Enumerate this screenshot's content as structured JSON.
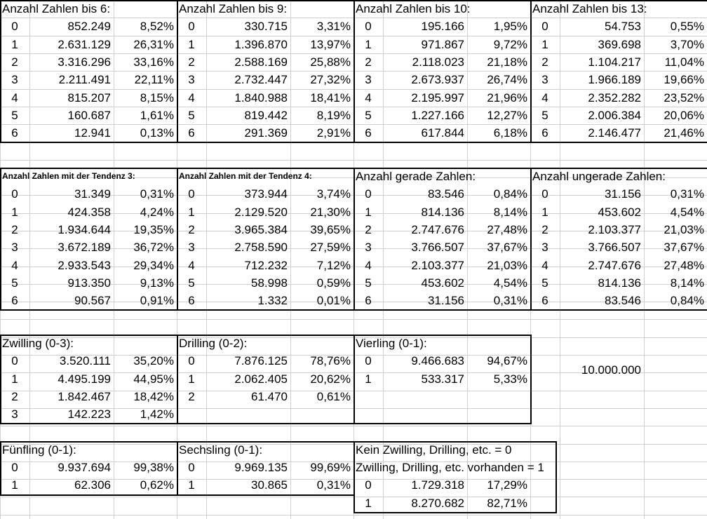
{
  "sections": [
    {
      "title": "Anzahl Zahlen bis 6:",
      "rows": [
        [
          "0",
          "852.249",
          "8,52%"
        ],
        [
          "1",
          "2.631.129",
          "26,31%"
        ],
        [
          "2",
          "3.316.296",
          "33,16%"
        ],
        [
          "3",
          "2.211.491",
          "22,11%"
        ],
        [
          "4",
          "815.207",
          "8,15%"
        ],
        [
          "5",
          "160.687",
          "1,61%"
        ],
        [
          "6",
          "12.941",
          "0,13%"
        ]
      ]
    },
    {
      "title": "Anzahl Zahlen bis 9:",
      "rows": [
        [
          "0",
          "330.715",
          "3,31%"
        ],
        [
          "1",
          "1.396.870",
          "13,97%"
        ],
        [
          "2",
          "2.588.169",
          "25,88%"
        ],
        [
          "3",
          "2.732.447",
          "27,32%"
        ],
        [
          "4",
          "1.840.988",
          "18,41%"
        ],
        [
          "5",
          "819.442",
          "8,19%"
        ],
        [
          "6",
          "291.369",
          "2,91%"
        ]
      ]
    },
    {
      "title": "Anzahl Zahlen bis 10:",
      "rows": [
        [
          "0",
          "195.166",
          "1,95%"
        ],
        [
          "1",
          "971.867",
          "9,72%"
        ],
        [
          "2",
          "2.118.023",
          "21,18%"
        ],
        [
          "3",
          "2.673.937",
          "26,74%"
        ],
        [
          "4",
          "2.195.997",
          "21,96%"
        ],
        [
          "5",
          "1.227.166",
          "12,27%"
        ],
        [
          "6",
          "617.844",
          "6,18%"
        ]
      ]
    },
    {
      "title": "Anzahl Zahlen bis 13:",
      "rows": [
        [
          "0",
          "54.753",
          "0,55%"
        ],
        [
          "1",
          "369.698",
          "3,70%"
        ],
        [
          "2",
          "1.104.217",
          "11,04%"
        ],
        [
          "3",
          "1.966.189",
          "19,66%"
        ],
        [
          "4",
          "2.352.282",
          "23,52%"
        ],
        [
          "5",
          "2.006.384",
          "20,06%"
        ],
        [
          "6",
          "2.146.477",
          "21,46%"
        ]
      ]
    },
    {
      "title": "Anzahl Zahlen mit der Tendenz 3:",
      "rows": [
        [
          "0",
          "31.349",
          "0,31%"
        ],
        [
          "1",
          "424.358",
          "4,24%"
        ],
        [
          "2",
          "1.934.644",
          "19,35%"
        ],
        [
          "3",
          "3.672.189",
          "36,72%"
        ],
        [
          "4",
          "2.933.543",
          "29,34%"
        ],
        [
          "5",
          "913.350",
          "9,13%"
        ],
        [
          "6",
          "90.567",
          "0,91%"
        ]
      ]
    },
    {
      "title": "Anzahl Zahlen mit der Tendenz 4:",
      "rows": [
        [
          "0",
          "373.944",
          "3,74%"
        ],
        [
          "1",
          "2.129.520",
          "21,30%"
        ],
        [
          "2",
          "3.965.384",
          "39,65%"
        ],
        [
          "3",
          "2.758.590",
          "27,59%"
        ],
        [
          "4",
          "712.232",
          "7,12%"
        ],
        [
          "5",
          "58.998",
          "0,59%"
        ],
        [
          "6",
          "1.332",
          "0,01%"
        ]
      ]
    },
    {
      "title": "Anzahl gerade Zahlen:",
      "rows": [
        [
          "0",
          "83.546",
          "0,84%"
        ],
        [
          "1",
          "814.136",
          "8,14%"
        ],
        [
          "2",
          "2.747.676",
          "27,48%"
        ],
        [
          "3",
          "3.766.507",
          "37,67%"
        ],
        [
          "4",
          "2.103.377",
          "21,03%"
        ],
        [
          "5",
          "453.602",
          "4,54%"
        ],
        [
          "6",
          "31.156",
          "0,31%"
        ]
      ]
    },
    {
      "title": "Anzahl ungerade Zahlen:",
      "rows": [
        [
          "0",
          "31.156",
          "0,31%"
        ],
        [
          "1",
          "453.602",
          "4,54%"
        ],
        [
          "2",
          "2.103.377",
          "21,03%"
        ],
        [
          "3",
          "3.766.507",
          "37,67%"
        ],
        [
          "4",
          "2.747.676",
          "27,48%"
        ],
        [
          "5",
          "814.136",
          "8,14%"
        ],
        [
          "6",
          "83.546",
          "0,84%"
        ]
      ]
    },
    {
      "title": "Zwilling (0-3):",
      "rows": [
        [
          "0",
          "3.520.111",
          "35,20%"
        ],
        [
          "1",
          "4.495.199",
          "44,95%"
        ],
        [
          "2",
          "1.842.467",
          "18,42%"
        ],
        [
          "3",
          "142.223",
          "1,42%"
        ]
      ]
    },
    {
      "title": "Drilling (0-2):",
      "rows": [
        [
          "0",
          "7.876.125",
          "78,76%"
        ],
        [
          "1",
          "2.062.405",
          "20,62%"
        ],
        [
          "2",
          "61.470",
          "0,61%"
        ]
      ]
    },
    {
      "title": "Vierling (0-1):",
      "rows": [
        [
          "0",
          "9.466.683",
          "94,67%"
        ],
        [
          "1",
          "533.317",
          "5,33%"
        ]
      ]
    },
    {
      "title": "Fünfling (0-1):",
      "rows": [
        [
          "0",
          "9.937.694",
          "99,38%"
        ],
        [
          "1",
          "62.306",
          "0,62%"
        ]
      ]
    },
    {
      "title": "Sechsling (0-1):",
      "rows": [
        [
          "0",
          "9.969.135",
          "99,69%"
        ],
        [
          "1",
          "30.865",
          "0,31%"
        ]
      ]
    },
    {
      "title": "Kein Zwilling, Drilling, etc. = 0",
      "title2": "Zwilling, Drilling, etc. vorhanden = 1",
      "rows": [
        [
          "0",
          "1.729.318",
          "17,29%"
        ],
        [
          "1",
          "8.270.682",
          "82,71%"
        ]
      ]
    }
  ],
  "total": "10.000.000"
}
